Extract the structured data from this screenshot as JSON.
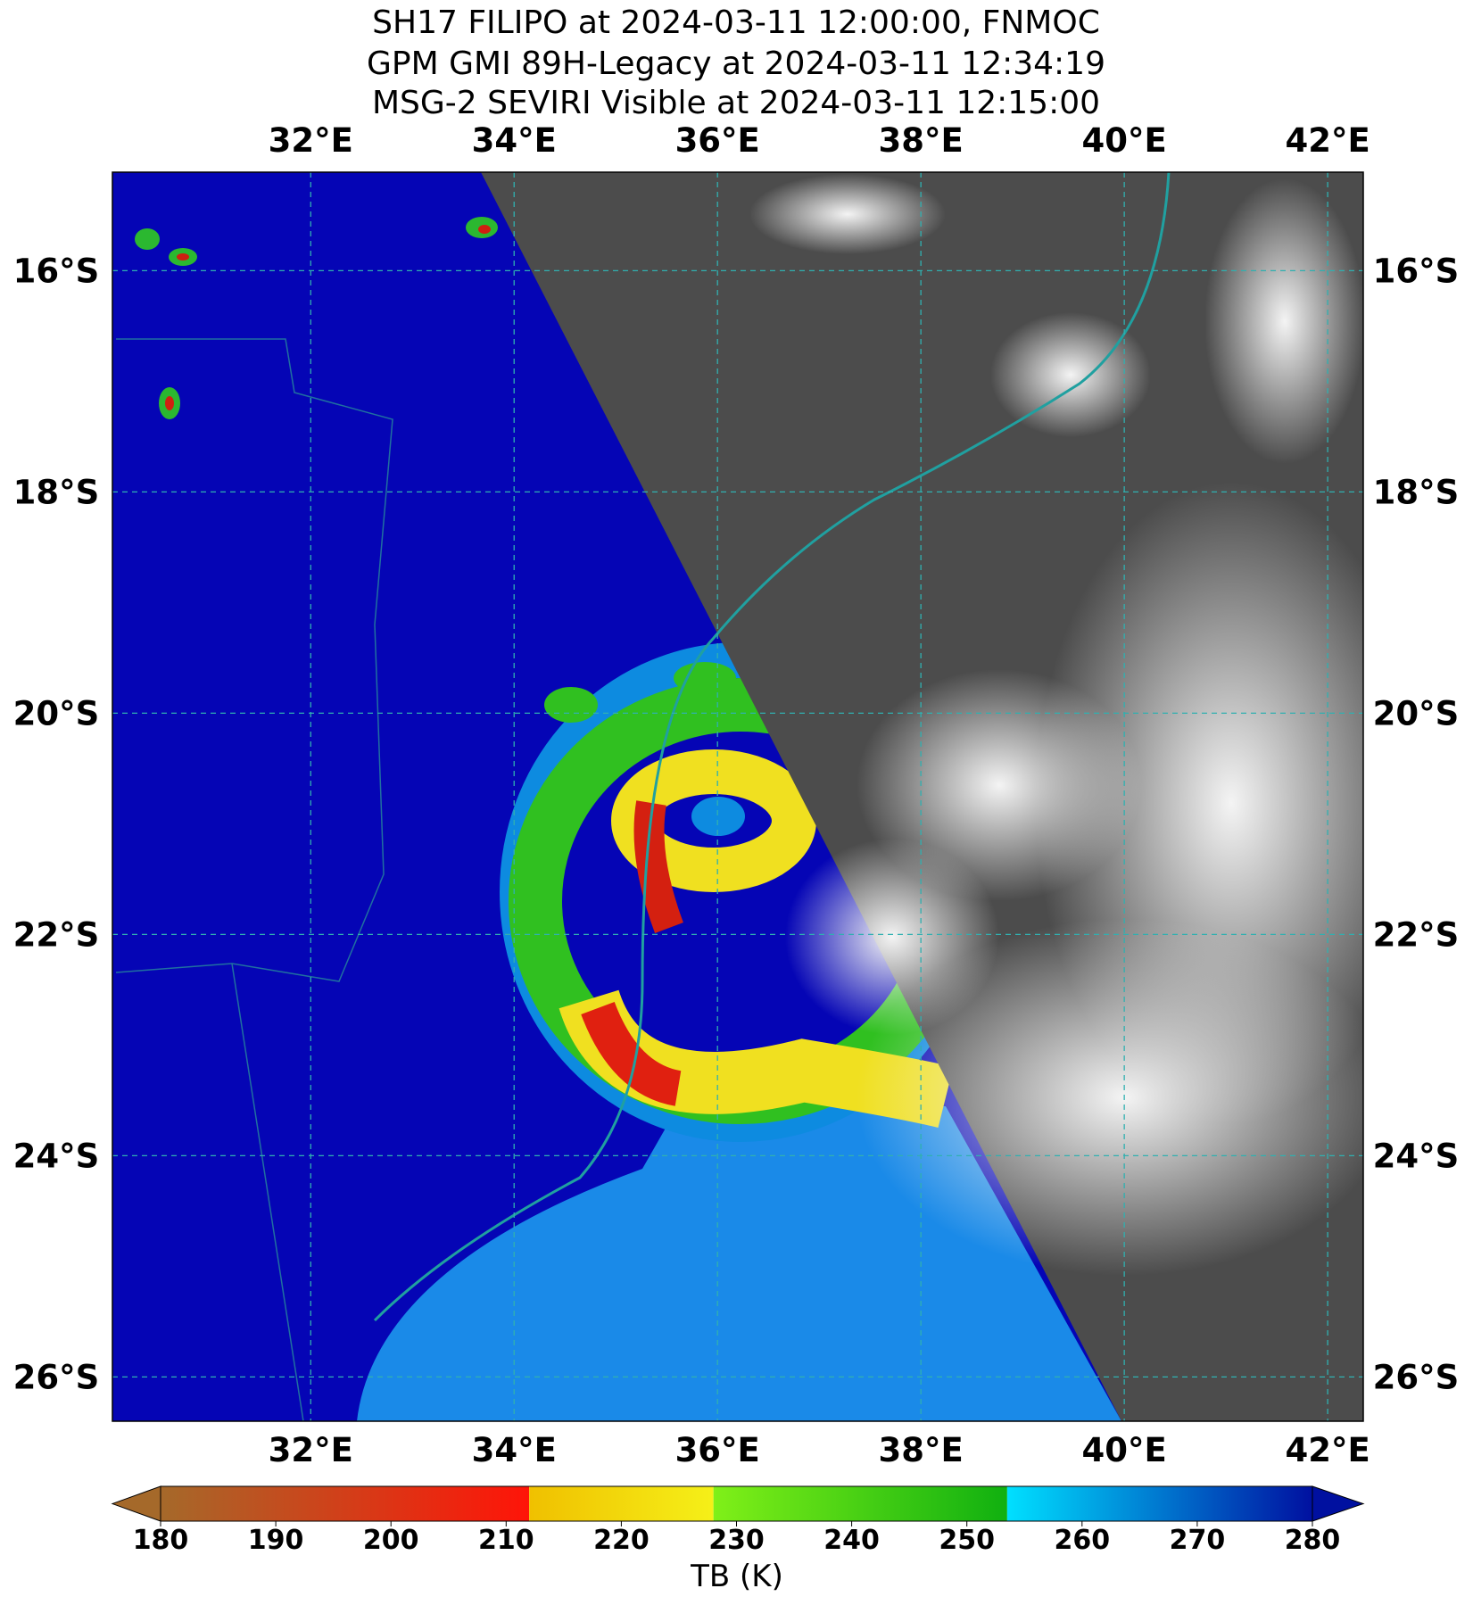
{
  "map": {
    "title": [
      "SH17 FILIPO at 2024-03-11 12:00:00, FNMOC",
      "GPM GMI 89H-Legacy at 2024-03-11 12:34:19",
      "MSG-2 SEVIRI Visible at 2024-03-11 12:15:00"
    ],
    "xlim": [
      30.05,
      42.35
    ],
    "ylim": [
      -26.4,
      -15.11
    ],
    "xticks": [
      {
        "value": 32,
        "label": "32°E"
      },
      {
        "value": 34,
        "label": "34°E"
      },
      {
        "value": 36,
        "label": "36°E"
      },
      {
        "value": 38,
        "label": "38°E"
      },
      {
        "value": 40,
        "label": "40°E"
      },
      {
        "value": 42,
        "label": "42°E"
      }
    ],
    "yticks": [
      {
        "value": -16,
        "label": "16°S"
      },
      {
        "value": -18,
        "label": "18°S"
      },
      {
        "value": -20,
        "label": "20°S"
      },
      {
        "value": -22,
        "label": "22°S"
      },
      {
        "value": -24,
        "label": "24°S"
      },
      {
        "value": -26,
        "label": "26°S"
      }
    ],
    "grid": true,
    "colorbar": {
      "label": "TB (K)",
      "range": [
        180,
        280
      ],
      "ticks": [
        180,
        190,
        200,
        210,
        220,
        230,
        240,
        250,
        260,
        270,
        280
      ],
      "segments": [
        {
          "from": 180,
          "to": 212,
          "colors": [
            "#a5692a",
            "#ff1408"
          ]
        },
        {
          "from": 212,
          "to": 228,
          "colors": [
            "#f0c000",
            "#f5f018"
          ]
        },
        {
          "from": 228,
          "to": 253.5,
          "colors": [
            "#80f018",
            "#10b010"
          ]
        },
        {
          "from": 253.5,
          "to": 280,
          "colors": [
            "#00e0ff",
            "#0010a0"
          ]
        }
      ]
    }
  }
}
